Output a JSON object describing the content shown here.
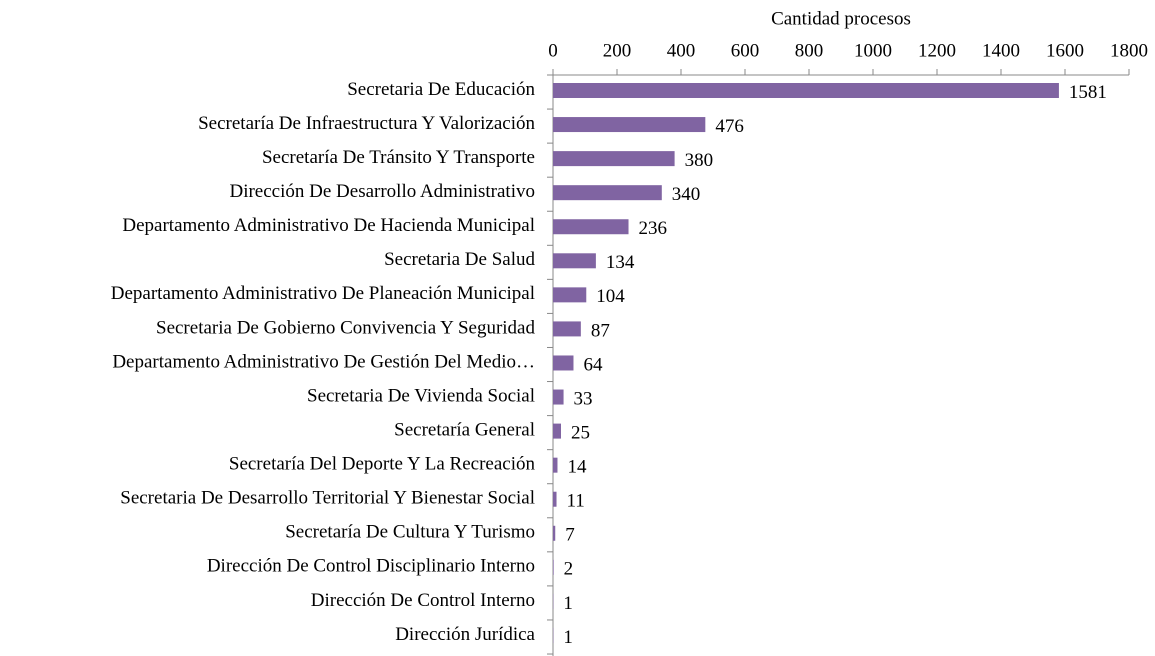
{
  "chart_data": {
    "type": "bar",
    "orientation": "horizontal",
    "xlabel": "Cantidad procesos",
    "categories": [
      "Secretaria De Educación",
      "Secretaría De Infraestructura Y Valorización",
      "Secretaría De Tránsito Y Transporte",
      "Dirección De Desarrollo Administrativo",
      "Departamento Administrativo De Hacienda Municipal",
      "Secretaria De Salud",
      "Departamento Administrativo De Planeación Municipal",
      "Secretaria De Gobierno Convivencia Y Seguridad",
      "Departamento Administrativo De Gestión Del Medio…",
      "Secretaria De Vivienda Social",
      "Secretaría General",
      "Secretaría Del Deporte Y La Recreación",
      "Secretaria De Desarrollo Territorial Y Bienestar Social",
      "Secretaría De Cultura Y Turismo",
      "Dirección De Control Disciplinario Interno",
      "Dirección De Control Interno",
      "Dirección Jurídica"
    ],
    "values": [
      1581,
      476,
      380,
      340,
      236,
      134,
      104,
      87,
      64,
      33,
      25,
      14,
      11,
      7,
      2,
      1,
      1
    ],
    "color": "#8064a2",
    "xlim": [
      0,
      1800
    ],
    "xticks": [
      0,
      200,
      400,
      600,
      800,
      1000,
      1200,
      1400,
      1600,
      1800
    ],
    "grid": false
  }
}
